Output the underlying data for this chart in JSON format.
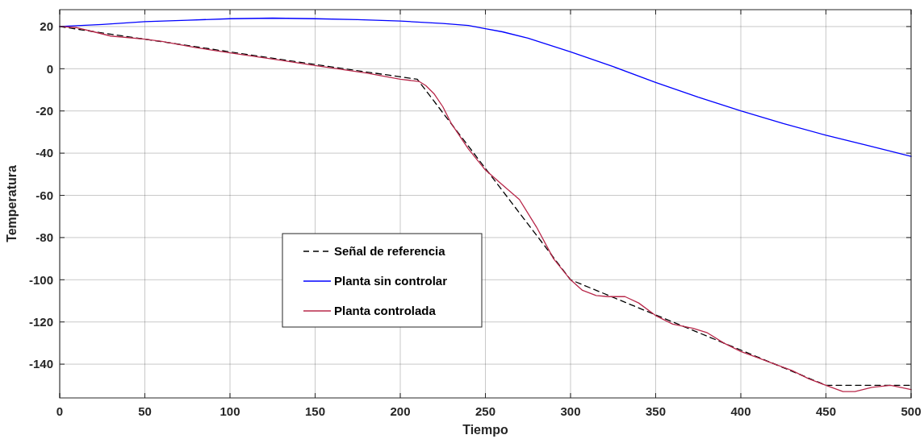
{
  "chart_data": {
    "type": "line",
    "xlabel": "Tiempo",
    "ylabel": "Temperatura",
    "xlim": [
      0,
      500
    ],
    "ylim": [
      -156,
      28
    ],
    "xticks": [
      0,
      50,
      100,
      150,
      200,
      250,
      300,
      350,
      400,
      450,
      500
    ],
    "yticks": [
      -140,
      -120,
      -100,
      -80,
      -60,
      -40,
      -20,
      0,
      20
    ],
    "grid": true,
    "legend": "center",
    "series": [
      {
        "name": "Señal de referencia",
        "color": "#000000",
        "line_style": "dashed",
        "x": [
          0,
          50,
          100,
          150,
          210,
          300,
          450,
          500
        ],
        "values": [
          20,
          14,
          8,
          2,
          -5,
          -100,
          -150,
          -150
        ]
      },
      {
        "name": "Planta sin controlar",
        "color": "#0000ff",
        "line_style": "solid",
        "x": [
          0,
          25,
          50,
          75,
          100,
          125,
          150,
          175,
          200,
          225,
          240,
          250,
          260,
          275,
          300,
          325,
          350,
          375,
          400,
          425,
          450,
          475,
          500
        ],
        "values": [
          20,
          21,
          22.3,
          23,
          23.7,
          24,
          23.7,
          23.3,
          22.6,
          21.5,
          20.5,
          19,
          17.5,
          14.5,
          8,
          1,
          -6.5,
          -13.5,
          -20,
          -26,
          -31.5,
          -36.5,
          -41.5
        ]
      },
      {
        "name": "Planta controlada",
        "color": "#b8284a",
        "line_style": "solid",
        "x": [
          0,
          10,
          20,
          30,
          50,
          60,
          80,
          100,
          130,
          150,
          180,
          200,
          211,
          215,
          220,
          225,
          230,
          240,
          250,
          260,
          270,
          280,
          290,
          300,
          307,
          315,
          322,
          332,
          340,
          350,
          360,
          372,
          380,
          390,
          400,
          410,
          420,
          430,
          440,
          450,
          460,
          467,
          477,
          488,
          500
        ],
        "values": [
          20,
          19.5,
          17.5,
          15.5,
          14,
          13,
          10,
          7.5,
          4,
          1.5,
          -2,
          -5,
          -6,
          -8,
          -12,
          -18,
          -26,
          -38,
          -48,
          -55,
          -62,
          -75,
          -90,
          -100,
          -105,
          -107.5,
          -108,
          -108,
          -111,
          -117,
          -121,
          -123,
          -125,
          -130,
          -134,
          -137,
          -140,
          -143,
          -147,
          -150,
          -153,
          -153,
          -151,
          -150,
          -152
        ]
      }
    ]
  }
}
